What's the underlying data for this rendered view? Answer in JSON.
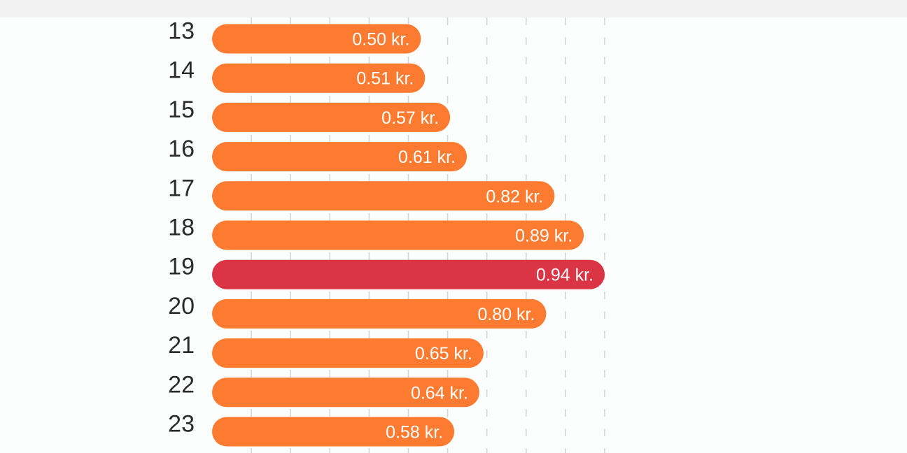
{
  "chart_data": {
    "type": "bar",
    "orientation": "horizontal",
    "categories": [
      "13",
      "14",
      "15",
      "16",
      "17",
      "18",
      "19",
      "20",
      "21",
      "22",
      "23"
    ],
    "values": [
      0.5,
      0.51,
      0.57,
      0.61,
      0.82,
      0.89,
      0.94,
      0.8,
      0.65,
      0.64,
      0.58
    ],
    "value_labels": [
      "0.50 kr.",
      "0.51 kr.",
      "0.57 kr.",
      "0.61 kr.",
      "0.82 kr.",
      "0.89 kr.",
      "0.94 kr.",
      "0.80 kr.",
      "0.65 kr.",
      "0.64 kr.",
      "0.58 kr."
    ],
    "highlight_category": "19",
    "xlim": [
      0,
      0.94
    ],
    "gridlines": [
      0.094,
      0.188,
      0.282,
      0.376,
      0.47,
      0.564,
      0.658,
      0.752,
      0.846,
      0.94
    ],
    "grid": true,
    "colors": {
      "bar": "#fd7b30",
      "highlight": "#db3445",
      "grid": "#d4d4d4",
      "category_text": "#2b2b2b",
      "value_text": "#ffffff"
    }
  }
}
